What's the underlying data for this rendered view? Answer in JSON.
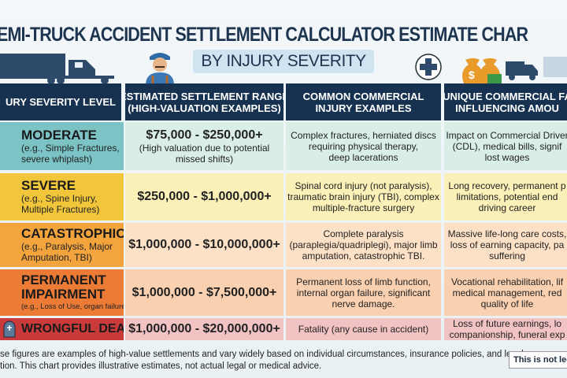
{
  "header": {
    "title": "EMI-TRUCK ACCIDENT SETTLEMENT CALCULATOR ESTIMATE CHAR",
    "subtitle": "BY INJURY SEVERITY"
  },
  "columns": [
    "URY SEVERITY LEVEL",
    "ESTIMATED SETTLEMENT RANGE\n(HIGH-VALUATION EXAMPLES)",
    "COMMON COMMERCIAL\nINJURY EXAMPLES",
    "UNIQUE COMMERCIAL FA\nINFLUENCING AMOU"
  ],
  "rows": [
    {
      "level": "MODERATE",
      "examples": "(e.g., Simple Fractures,\nsevere whiplash)",
      "range": "$75,000 - $250,000+",
      "range_note": "(High valuation due to potential\nmissed shifts)",
      "injuries": "Complex fractures, herniated discs\nrequiring physical therapy,\ndeep lacerations",
      "factors": "Impact on Commercial Driver\n(CDL), medical bills, signif\nlost wages",
      "color": "#7cc3c6",
      "bg": "#d9eee7"
    },
    {
      "level": "SEVERE",
      "examples": "(e.g., Spine Injury,\nMultiple Fractures)",
      "range": "$250,000 - $1,000,000+",
      "range_note": "",
      "injuries": "Spinal cord injury (not paralysis),\ntraumatic brain injury (TBI), complex\nmultiple-fracture surgery",
      "factors": "Long recovery, permanent p\nlimitations, potential end\ndriving career",
      "color": "#f2c63a",
      "bg": "#fbf0b8"
    },
    {
      "level": "CATASTROPHIC",
      "examples": "(e.g., Paralysis, Major\nAmputation, TBI)",
      "range": "$1,000,000 - $10,000,000+",
      "range_note": "",
      "injuries": "Complete paralysis\n(paraplegia/quadriplegi), major limb\namputation, catastrophic TBI.",
      "factors": "Massive life-long care costs,\nloss of earning capacity, pa\nsuffering",
      "color": "#f4a43c",
      "bg": "#fde1c6"
    },
    {
      "level": "PERMANENT\nIMPAIRMENT",
      "examples": "(e.g., Loss of Use, organ failure)",
      "range": "$1,000,000 - $7,500,000+",
      "range_note": "",
      "injuries": "Permanent loss of limb function,\ninternal organ failure, significant\nnerve damage.",
      "factors": "Vocational rehabilitation, lif\nmedical management, red\nquality of life",
      "color": "#ec7b36",
      "bg": "#f9d0b0"
    },
    {
      "level": "WRONGFUL DEATH",
      "examples": "",
      "range": "$1,000,000 - $20,000,000+",
      "range_note": "",
      "injuries": "Fatality (any cause in accident)",
      "factors": "Loss of future earnings, lo\ncompanionship, funeral exp",
      "color": "#c93a3b",
      "bg": "#f2c3c3"
    }
  ],
  "footer": {
    "disclaimer": "se figures are examples of high-value settlements and vary widely based on individual circumstances, insurance policies, and legal\ntion. This chart provides illustrative estimates, not actual legal or medical advice.",
    "badge": "This is not lega"
  },
  "icons": [
    "semi-truck-icon",
    "truck-driver-icon",
    "medical-cross-icon",
    "money-bags-icon",
    "delivery-truck-icon",
    "tombstone-icon"
  ]
}
